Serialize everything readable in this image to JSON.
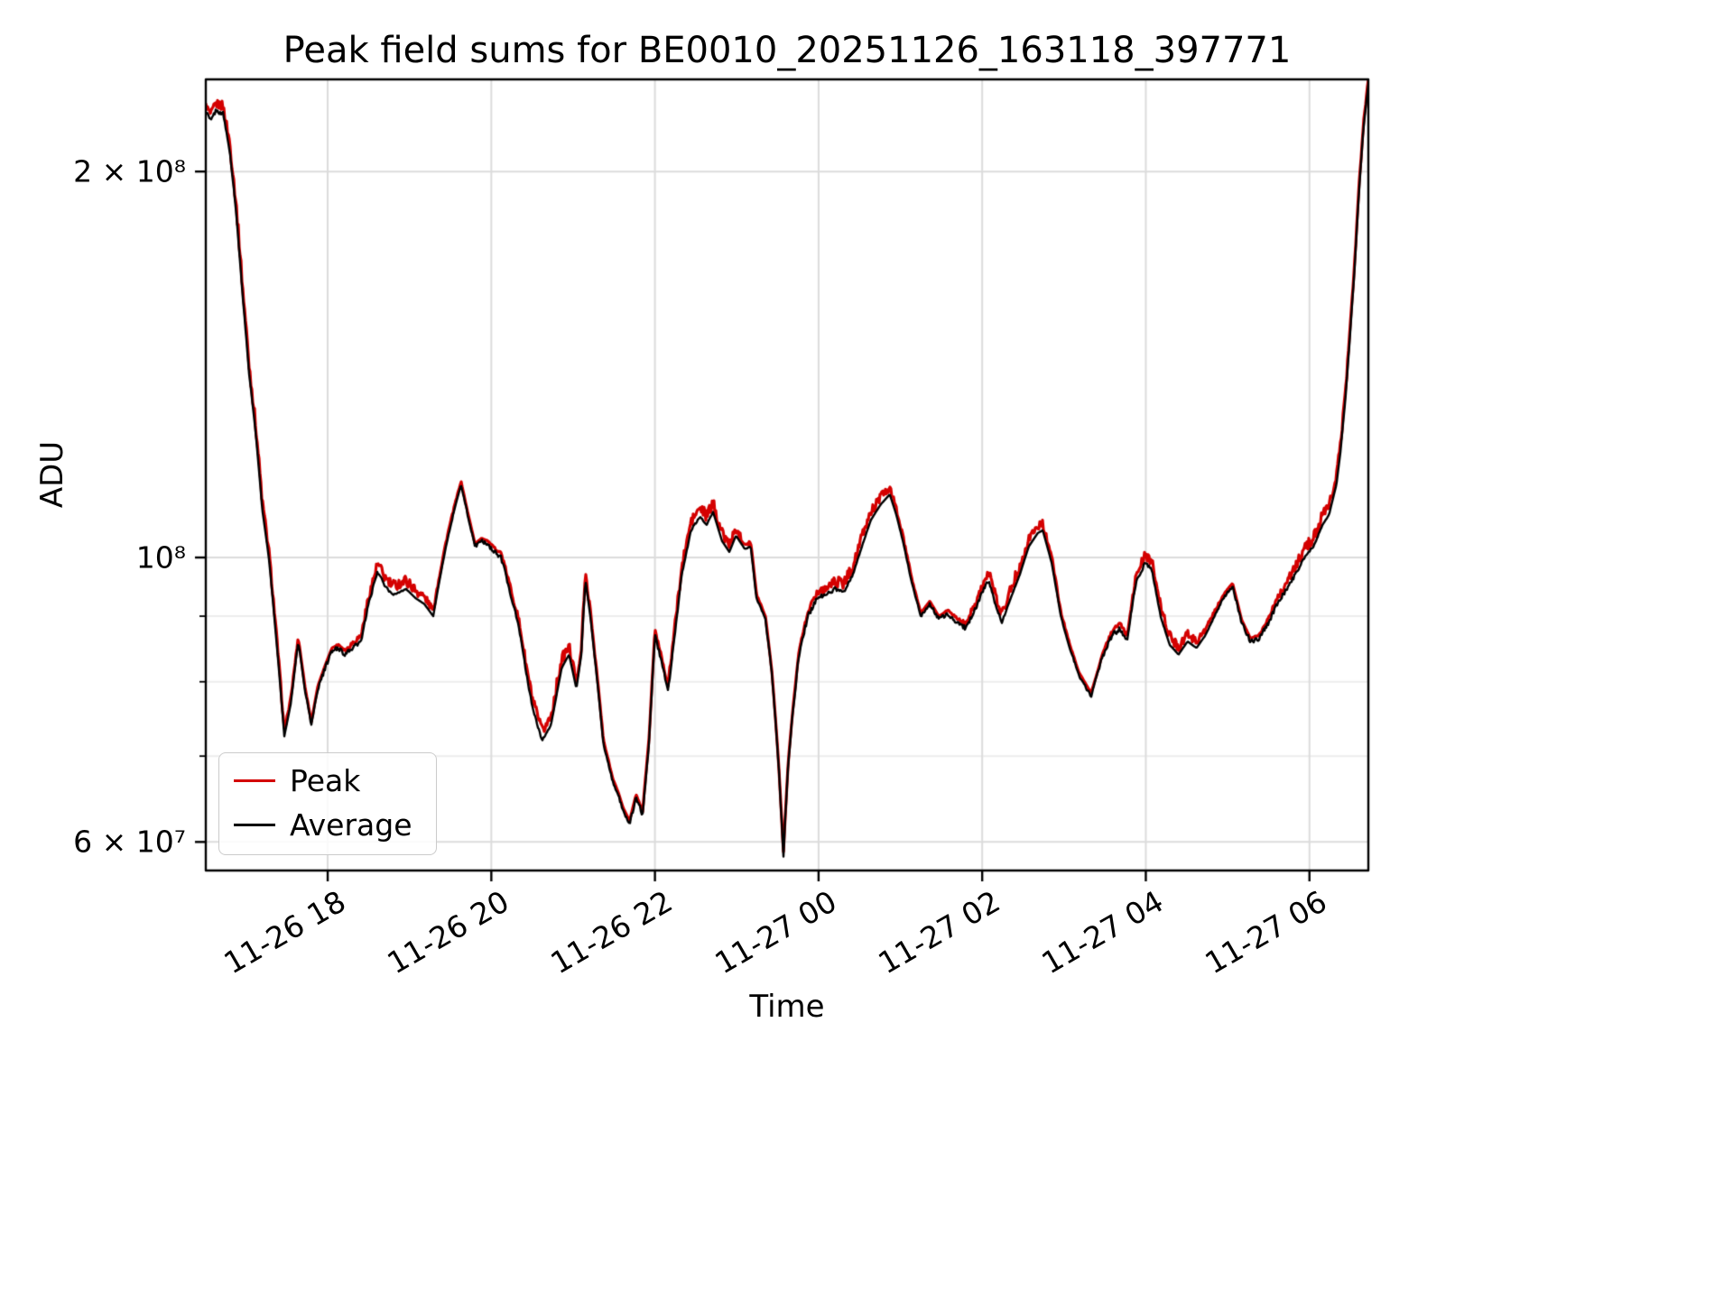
{
  "page": {
    "background": "#ffffff"
  },
  "chart_data": {
    "type": "line",
    "title": "Peak field sums for BE0010_20251126_163118_397771",
    "xlabel": "Time",
    "ylabel": "ADU",
    "y_scale": "log",
    "grid": true,
    "x_unit": "hours since 11-26 00:00",
    "xlim": [
      16.51,
      30.72
    ],
    "ylim": [
      57000000,
      236000000
    ],
    "x_ticks": [
      {
        "value": 18,
        "label": "11-26 18"
      },
      {
        "value": 20,
        "label": "11-26 20"
      },
      {
        "value": 22,
        "label": "11-26 22"
      },
      {
        "value": 24,
        "label": "11-27 00"
      },
      {
        "value": 26,
        "label": "11-27 02"
      },
      {
        "value": 28,
        "label": "11-27 04"
      },
      {
        "value": 30,
        "label": "11-27 06"
      }
    ],
    "y_ticks": [
      {
        "value": 60000000,
        "label": "6 × 10⁷"
      },
      {
        "value": 100000000,
        "label": "10⁸"
      },
      {
        "value": 200000000,
        "label": "2 × 10⁸"
      }
    ],
    "y_minor_gridlines": [
      70000000,
      80000000,
      90000000
    ],
    "legend": {
      "position": "lower-left",
      "entries": [
        {
          "label": "Peak",
          "color": "#d40000"
        },
        {
          "label": "Average",
          "color": "#000000"
        }
      ]
    },
    "value_scale": 10000000,
    "x": [
      16.51,
      16.57,
      16.63,
      16.72,
      16.8,
      16.88,
      16.96,
      17.04,
      17.12,
      17.2,
      17.28,
      17.36,
      17.43,
      17.47,
      17.55,
      17.64,
      17.72,
      17.8,
      17.88,
      17.97,
      18.05,
      18.13,
      18.22,
      18.3,
      18.41,
      18.5,
      18.61,
      18.7,
      18.79,
      18.88,
      18.96,
      19.07,
      19.18,
      19.29,
      19.38,
      19.46,
      19.55,
      19.63,
      19.71,
      19.8,
      19.88,
      19.95,
      20.04,
      20.12,
      20.23,
      20.34,
      20.43,
      20.51,
      20.62,
      20.73,
      20.86,
      20.95,
      21.04,
      21.1,
      21.15,
      21.21,
      21.26,
      21.37,
      21.48,
      21.56,
      21.61,
      21.69,
      21.77,
      21.85,
      21.93,
      22.0,
      22.08,
      22.16,
      22.25,
      22.33,
      22.44,
      22.55,
      22.63,
      22.71,
      22.82,
      22.91,
      22.99,
      23.1,
      23.17,
      23.24,
      23.35,
      23.43,
      23.51,
      23.57,
      23.63,
      23.68,
      23.76,
      23.87,
      23.98,
      24.09,
      24.2,
      24.31,
      24.42,
      24.53,
      24.64,
      24.76,
      24.87,
      24.95,
      25.03,
      25.14,
      25.25,
      25.36,
      25.47,
      25.58,
      25.69,
      25.8,
      25.91,
      26.02,
      26.08,
      26.16,
      26.24,
      26.35,
      26.46,
      26.57,
      26.68,
      26.74,
      26.85,
      26.96,
      27.07,
      27.18,
      27.33,
      27.41,
      27.48,
      27.59,
      27.68,
      27.77,
      27.88,
      27.99,
      28.07,
      28.18,
      28.29,
      28.4,
      28.51,
      28.62,
      28.73,
      28.84,
      28.95,
      29.06,
      29.17,
      29.28,
      29.39,
      29.5,
      29.61,
      29.72,
      29.83,
      29.94,
      30.05,
      30.16,
      30.24,
      30.33,
      30.38,
      30.44,
      30.49,
      30.55,
      30.6,
      30.66,
      30.72
    ],
    "values_e7": [
      22.3,
      21.9,
      22.3,
      22.2,
      20.8,
      18.6,
      16.0,
      13.9,
      12.5,
      10.9,
      10.0,
      8.8,
      7.8,
      7.25,
      7.7,
      8.6,
      7.9,
      7.4,
      7.9,
      8.2,
      8.45,
      8.5,
      8.4,
      8.5,
      8.6,
      9.2,
      9.75,
      9.5,
      9.35,
      9.4,
      9.45,
      9.3,
      9.2,
      9.0,
      9.7,
      10.3,
      10.9,
      11.4,
      10.8,
      10.2,
      10.3,
      10.25,
      10.1,
      10.0,
      9.4,
      8.8,
      8.1,
      7.6,
      7.2,
      7.4,
      8.2,
      8.4,
      7.9,
      8.4,
      9.6,
      9.0,
      8.4,
      7.15,
      6.7,
      6.5,
      6.35,
      6.2,
      6.5,
      6.3,
      7.2,
      8.7,
      8.3,
      7.85,
      8.8,
      9.7,
      10.5,
      10.76,
      10.6,
      10.85,
      10.3,
      10.1,
      10.4,
      10.15,
      10.2,
      9.3,
      8.95,
      8.1,
      6.9,
      5.85,
      6.9,
      7.5,
      8.4,
      9.0,
      9.3,
      9.35,
      9.45,
      9.4,
      9.7,
      10.2,
      10.7,
      11.0,
      11.2,
      10.8,
      10.3,
      9.55,
      9.0,
      9.2,
      8.95,
      9.05,
      8.9,
      8.8,
      9.1,
      9.45,
      9.6,
      9.2,
      8.9,
      9.3,
      9.7,
      10.2,
      10.45,
      10.5,
      9.9,
      9.0,
      8.5,
      8.1,
      7.8,
      8.1,
      8.4,
      8.7,
      8.8,
      8.6,
      9.55,
      9.9,
      9.8,
      9.0,
      8.55,
      8.4,
      8.6,
      8.5,
      8.7,
      9.0,
      9.3,
      9.5,
      8.9,
      8.6,
      8.65,
      8.9,
      9.2,
      9.45,
      9.7,
      10.0,
      10.2,
      10.6,
      10.8,
      11.4,
      12.1,
      13.3,
      14.7,
      16.7,
      19.0,
      21.6,
      23.4
    ],
    "series": [
      {
        "name": "Peak",
        "color": "#d40000",
        "linewidth": 3.2,
        "derived_from": "values_e7",
        "base_ratio": 1.005,
        "noise_amp": 0.022,
        "noise_mode": "above"
      },
      {
        "name": "Average",
        "color": "#000000",
        "linewidth": 2.4,
        "derived_from": "values_e7",
        "base_ratio": 1.0,
        "noise_amp": 0.009,
        "noise_mode": "centered"
      }
    ]
  }
}
